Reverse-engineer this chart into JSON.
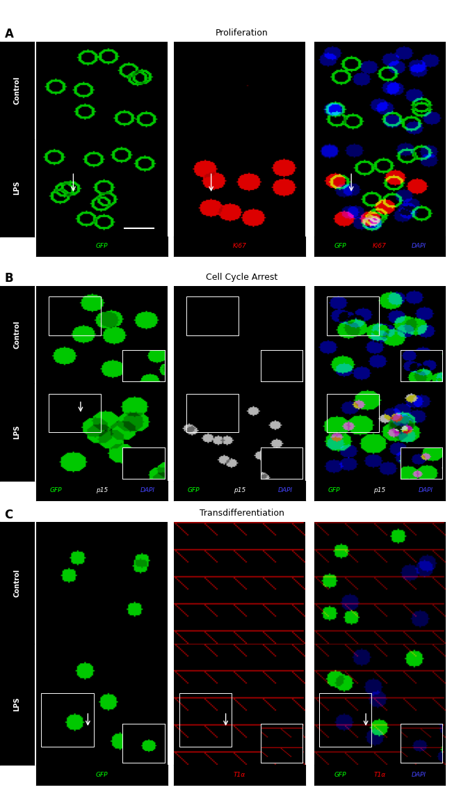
{
  "panel_A_title": "Proliferation",
  "panel_B_title": "Cell Cycle Arrest",
  "panel_C_title": "Transdifferentiation",
  "panel_A_label": "A",
  "panel_B_label": "B",
  "panel_C_label": "C",
  "row_labels": [
    "Control",
    "LPS"
  ],
  "panel_A_col_labels": [
    [
      "GFP"
    ],
    [
      "Ki67"
    ],
    [
      "GFP",
      "Ki67",
      "DAPI"
    ]
  ],
  "panel_B_col_labels": [
    [
      "GFP",
      "p15",
      "DAPI"
    ],
    [
      "GFP",
      "p15",
      "DAPI"
    ],
    [
      "GFP",
      "p15",
      "DAPI"
    ]
  ],
  "panel_C_col_labels": [
    [
      "GFP"
    ],
    [
      "T1α"
    ],
    [
      "GFP",
      "T1α",
      "DAPI"
    ]
  ],
  "panel_A_col_label_colors": [
    [
      "#00ff00"
    ],
    [
      "#ff0000"
    ],
    [
      "#00ff00",
      "#ff0000",
      "#4444ff"
    ]
  ],
  "panel_B_col_label_colors": [
    [
      "#00ff00",
      "#ffffff",
      "#4444ff"
    ],
    [
      "#00ff00",
      "#ffffff",
      "#4444ff"
    ],
    [
      "#00ff00",
      "#ffffff",
      "#4444ff"
    ]
  ],
  "panel_C_col_label_colors": [
    [
      "#00ff00"
    ],
    [
      "#ff0000"
    ],
    [
      "#00ff00",
      "#ff0000",
      "#4444ff"
    ]
  ],
  "bg_color": "#000000",
  "title_color": "#000000",
  "label_color": "#ffffff",
  "figure_bg": "#ffffff",
  "scale_bar_color": "#ffffff"
}
